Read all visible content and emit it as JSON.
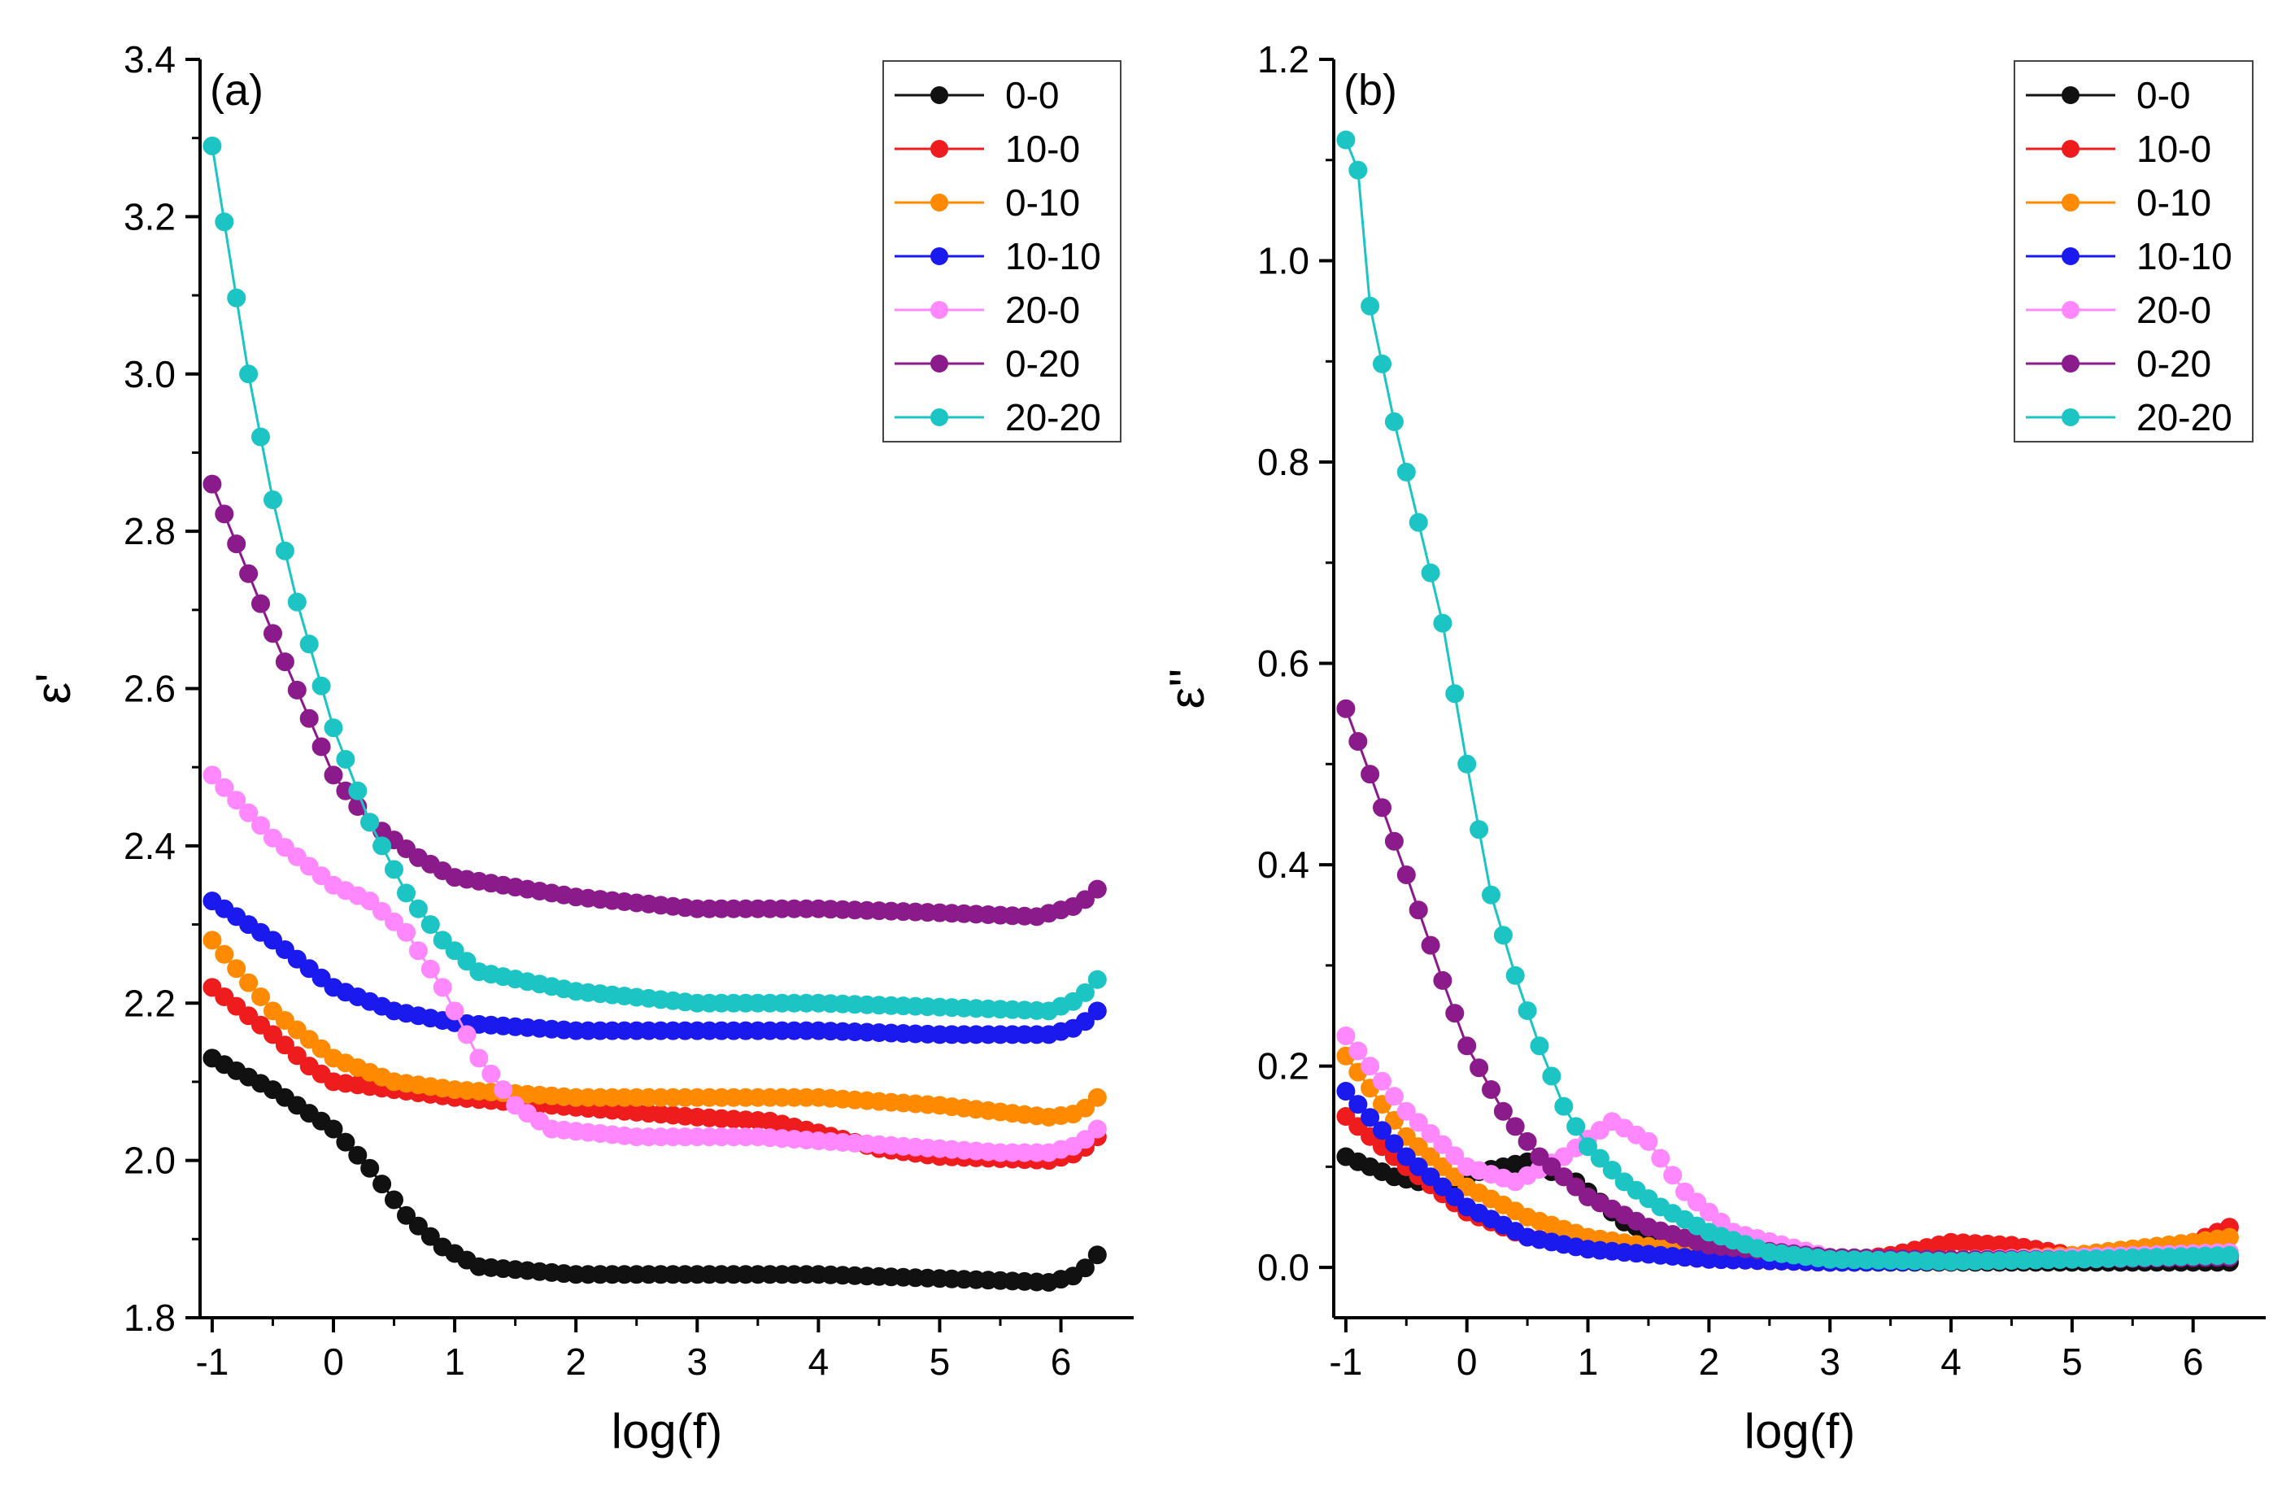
{
  "colors": {
    "0-0": "#111111",
    "10-0": "#ee1c1c",
    "0-10": "#ff8a00",
    "10-10": "#1a1aee",
    "20-0": "#ff88ff",
    "0-20": "#8b1a8b",
    "20-20": "#1cc4c4"
  },
  "chart_data": [
    {
      "type": "scatter",
      "panel_label": "(a)",
      "xlabel": "log(f)",
      "ylabel": "ε'",
      "xlim": [
        -1.1,
        6.6
      ],
      "ylim": [
        1.8,
        3.4
      ],
      "xticks": [
        -1,
        0,
        1,
        2,
        3,
        4,
        5,
        6
      ],
      "xtick_labels": [
        "-1",
        "0",
        "1",
        "2",
        "3",
        "4",
        "5",
        "6"
      ],
      "yticks": [
        1.8,
        2.0,
        2.2,
        2.4,
        2.6,
        2.8,
        3.0,
        3.2,
        3.4
      ],
      "ytick_labels": [
        "1.8",
        "2.0",
        "2.2",
        "2.4",
        "2.6",
        "2.8",
        "3.0",
        "3.2",
        "3.4"
      ],
      "legend_position": "top-right",
      "x_start": -1.0,
      "x_end": 6.3,
      "n_points": 74,
      "series": [
        {
          "name": "0-0",
          "knots": [
            [
              -1.0,
              2.13
            ],
            [
              -0.5,
              2.09
            ],
            [
              0.0,
              2.04
            ],
            [
              0.3,
              1.99
            ],
            [
              0.6,
              1.93
            ],
            [
              0.9,
              1.89
            ],
            [
              1.2,
              1.865
            ],
            [
              2.0,
              1.855
            ],
            [
              4.0,
              1.855
            ],
            [
              5.0,
              1.85
            ],
            [
              5.9,
              1.845
            ],
            [
              6.15,
              1.855
            ],
            [
              6.3,
              1.88
            ]
          ]
        },
        {
          "name": "10-0",
          "knots": [
            [
              -1.0,
              2.22
            ],
            [
              -0.5,
              2.16
            ],
            [
              -0.2,
              2.12
            ],
            [
              0.0,
              2.1
            ],
            [
              1.0,
              2.08
            ],
            [
              3.0,
              2.055
            ],
            [
              3.6,
              2.05
            ],
            [
              4.0,
              2.035
            ],
            [
              4.5,
              2.015
            ],
            [
              5.0,
              2.005
            ],
            [
              5.9,
              2.0
            ],
            [
              6.15,
              2.01
            ],
            [
              6.3,
              2.03
            ]
          ]
        },
        {
          "name": "0-10",
          "knots": [
            [
              -1.0,
              2.28
            ],
            [
              -0.5,
              2.19
            ],
            [
              0.0,
              2.13
            ],
            [
              0.5,
              2.1
            ],
            [
              1.0,
              2.09
            ],
            [
              2.0,
              2.08
            ],
            [
              3.0,
              2.08
            ],
            [
              4.0,
              2.08
            ],
            [
              5.0,
              2.07
            ],
            [
              5.9,
              2.055
            ],
            [
              6.15,
              2.06
            ],
            [
              6.3,
              2.08
            ]
          ]
        },
        {
          "name": "10-10",
          "knots": [
            [
              -1.0,
              2.33
            ],
            [
              -0.5,
              2.28
            ],
            [
              0.0,
              2.22
            ],
            [
              0.5,
              2.19
            ],
            [
              1.0,
              2.175
            ],
            [
              2.0,
              2.165
            ],
            [
              3.0,
              2.165
            ],
            [
              4.0,
              2.165
            ],
            [
              5.0,
              2.16
            ],
            [
              5.9,
              2.16
            ],
            [
              6.15,
              2.17
            ],
            [
              6.3,
              2.19
            ]
          ]
        },
        {
          "name": "20-0",
          "knots": [
            [
              -1.0,
              2.49
            ],
            [
              -0.5,
              2.41
            ],
            [
              0.0,
              2.35
            ],
            [
              0.3,
              2.33
            ],
            [
              0.6,
              2.29
            ],
            [
              0.9,
              2.22
            ],
            [
              1.2,
              2.13
            ],
            [
              1.5,
              2.07
            ],
            [
              1.8,
              2.04
            ],
            [
              2.5,
              2.03
            ],
            [
              3.5,
              2.03
            ],
            [
              4.5,
              2.02
            ],
            [
              5.5,
              2.01
            ],
            [
              5.9,
              2.01
            ],
            [
              6.15,
              2.02
            ],
            [
              6.3,
              2.04
            ]
          ]
        },
        {
          "name": "0-20",
          "knots": [
            [
              -1.0,
              2.86
            ],
            [
              -0.5,
              2.67
            ],
            [
              0.0,
              2.49
            ],
            [
              0.3,
              2.43
            ],
            [
              0.7,
              2.385
            ],
            [
              1.0,
              2.36
            ],
            [
              2.0,
              2.335
            ],
            [
              3.0,
              2.32
            ],
            [
              4.0,
              2.32
            ],
            [
              5.0,
              2.315
            ],
            [
              5.8,
              2.31
            ],
            [
              6.15,
              2.325
            ],
            [
              6.3,
              2.345
            ]
          ]
        },
        {
          "name": "20-20",
          "knots": [
            [
              -1.0,
              3.29
            ],
            [
              -0.7,
              3.0
            ],
            [
              -0.5,
              2.84
            ],
            [
              -0.3,
              2.71
            ],
            [
              0.0,
              2.55
            ],
            [
              0.3,
              2.43
            ],
            [
              0.6,
              2.34
            ],
            [
              0.9,
              2.28
            ],
            [
              1.2,
              2.24
            ],
            [
              2.0,
              2.215
            ],
            [
              3.0,
              2.2
            ],
            [
              4.0,
              2.2
            ],
            [
              5.0,
              2.195
            ],
            [
              5.9,
              2.19
            ],
            [
              6.15,
              2.205
            ],
            [
              6.3,
              2.23
            ]
          ]
        }
      ]
    },
    {
      "type": "scatter",
      "panel_label": "(b)",
      "xlabel": "log(f)",
      "ylabel": "ε''",
      "xlim": [
        -1.1,
        6.6
      ],
      "ylim": [
        -0.05,
        1.2
      ],
      "xticks": [
        -1,
        0,
        1,
        2,
        3,
        4,
        5,
        6
      ],
      "xtick_labels": [
        "-1",
        "0",
        "1",
        "2",
        "3",
        "4",
        "5",
        "6"
      ],
      "yticks": [
        0.0,
        0.2,
        0.4,
        0.6,
        0.8,
        1.0,
        1.2
      ],
      "ytick_labels": [
        "0.0",
        "0.2",
        "0.4",
        "0.6",
        "0.8",
        "1.0",
        "1.2"
      ],
      "legend_position": "top-right",
      "x_start": -1.0,
      "x_end": 6.3,
      "n_points": 74,
      "series": [
        {
          "name": "0-0",
          "knots": [
            [
              -1.0,
              0.11
            ],
            [
              -0.6,
              0.09
            ],
            [
              -0.2,
              0.08
            ],
            [
              0.1,
              0.095
            ],
            [
              0.5,
              0.105
            ],
            [
              0.9,
              0.085
            ],
            [
              1.3,
              0.045
            ],
            [
              2.0,
              0.012
            ],
            [
              3.0,
              0.005
            ],
            [
              4.0,
              0.005
            ],
            [
              5.0,
              0.005
            ],
            [
              6.3,
              0.005
            ]
          ]
        },
        {
          "name": "10-0",
          "knots": [
            [
              -1.0,
              0.15
            ],
            [
              -0.5,
              0.1
            ],
            [
              0.0,
              0.055
            ],
            [
              0.5,
              0.03
            ],
            [
              1.0,
              0.02
            ],
            [
              2.0,
              0.008
            ],
            [
              3.0,
              0.005
            ],
            [
              3.5,
              0.012
            ],
            [
              4.0,
              0.025
            ],
            [
              4.5,
              0.022
            ],
            [
              5.0,
              0.012
            ],
            [
              5.5,
              0.01
            ],
            [
              6.0,
              0.025
            ],
            [
              6.3,
              0.04
            ]
          ]
        },
        {
          "name": "0-10",
          "knots": [
            [
              -1.0,
              0.21
            ],
            [
              -0.5,
              0.13
            ],
            [
              0.0,
              0.08
            ],
            [
              0.5,
              0.05
            ],
            [
              1.0,
              0.03
            ],
            [
              2.0,
              0.012
            ],
            [
              3.0,
              0.006
            ],
            [
              4.0,
              0.006
            ],
            [
              5.0,
              0.012
            ],
            [
              6.0,
              0.025
            ],
            [
              6.3,
              0.03
            ]
          ]
        },
        {
          "name": "10-10",
          "knots": [
            [
              -1.0,
              0.175
            ],
            [
              -0.5,
              0.11
            ],
            [
              0.0,
              0.06
            ],
            [
              0.5,
              0.03
            ],
            [
              1.0,
              0.018
            ],
            [
              2.0,
              0.008
            ],
            [
              3.0,
              0.005
            ],
            [
              4.0,
              0.006
            ],
            [
              5.0,
              0.008
            ],
            [
              6.3,
              0.012
            ]
          ]
        },
        {
          "name": "20-0",
          "knots": [
            [
              -1.0,
              0.23
            ],
            [
              -0.5,
              0.155
            ],
            [
              0.0,
              0.1
            ],
            [
              0.4,
              0.085
            ],
            [
              0.8,
              0.11
            ],
            [
              1.2,
              0.145
            ],
            [
              1.5,
              0.125
            ],
            [
              1.8,
              0.075
            ],
            [
              2.2,
              0.035
            ],
            [
              3.0,
              0.01
            ],
            [
              4.0,
              0.008
            ],
            [
              5.0,
              0.01
            ],
            [
              6.3,
              0.015
            ]
          ]
        },
        {
          "name": "0-20",
          "knots": [
            [
              -1.0,
              0.555
            ],
            [
              -0.8,
              0.49
            ],
            [
              -0.5,
              0.39
            ],
            [
              -0.2,
              0.285
            ],
            [
              0.0,
              0.22
            ],
            [
              0.3,
              0.155
            ],
            [
              0.6,
              0.11
            ],
            [
              1.0,
              0.07
            ],
            [
              1.5,
              0.04
            ],
            [
              2.0,
              0.022
            ],
            [
              3.0,
              0.01
            ],
            [
              4.0,
              0.008
            ],
            [
              5.0,
              0.008
            ],
            [
              6.3,
              0.01
            ]
          ]
        },
        {
          "name": "20-20",
          "knots": [
            [
              -1.0,
              1.12
            ],
            [
              -0.9,
              1.09
            ],
            [
              -0.8,
              0.955
            ],
            [
              -0.6,
              0.84
            ],
            [
              -0.4,
              0.74
            ],
            [
              -0.2,
              0.64
            ],
            [
              0.0,
              0.5
            ],
            [
              0.2,
              0.37
            ],
            [
              0.4,
              0.29
            ],
            [
              0.6,
              0.22
            ],
            [
              0.8,
              0.16
            ],
            [
              1.0,
              0.12
            ],
            [
              1.3,
              0.085
            ],
            [
              1.6,
              0.06
            ],
            [
              2.0,
              0.035
            ],
            [
              2.5,
              0.015
            ],
            [
              3.0,
              0.008
            ],
            [
              4.0,
              0.006
            ],
            [
              5.0,
              0.008
            ],
            [
              6.3,
              0.012
            ]
          ]
        }
      ]
    }
  ]
}
